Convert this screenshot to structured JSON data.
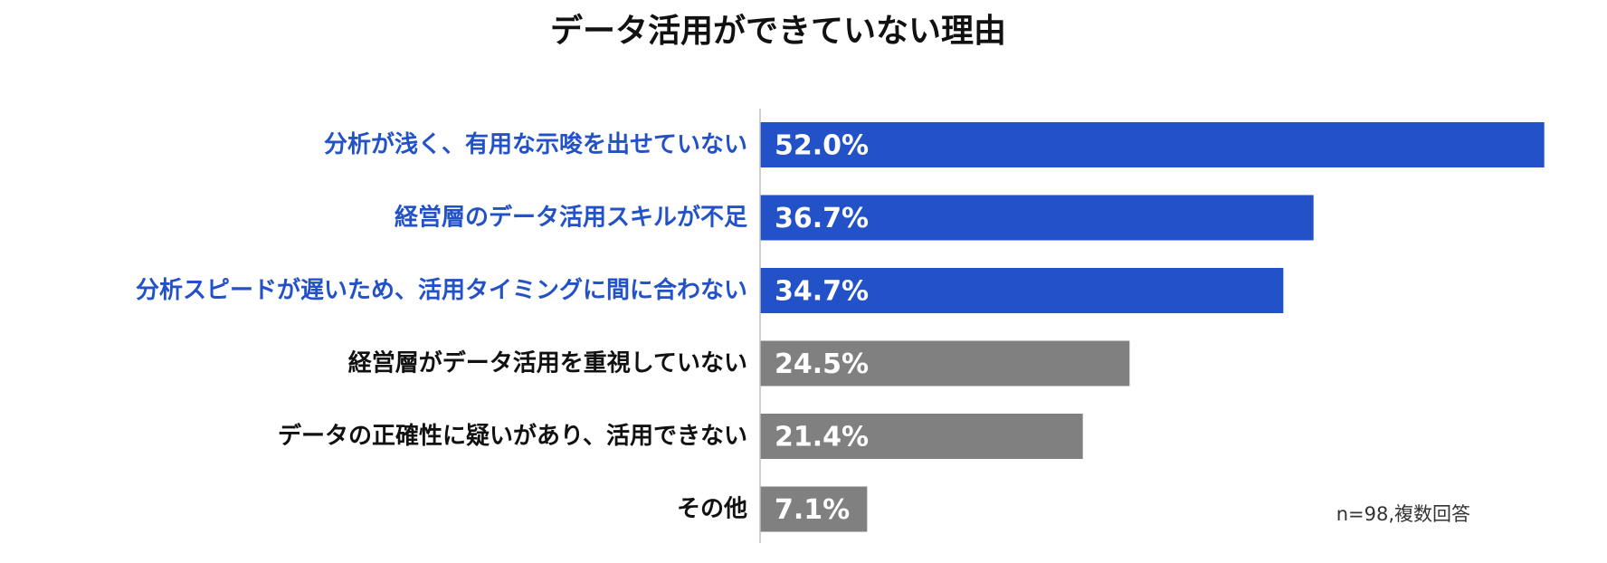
{
  "chart_data": {
    "type": "bar",
    "orientation": "horizontal",
    "title": "データ活用ができていない理由",
    "categories": [
      "分析が浅く、有用な示唆を出せていない",
      "経営層のデータ活用スキルが不足",
      "分析スピードが遅いため、活用タイミングに間に合わない",
      "経営層がデータ活用を重視していない",
      "データの正確性に疑いがあり、活用できない",
      "その他"
    ],
    "values": [
      52.0,
      36.7,
      34.7,
      24.5,
      21.4,
      7.1
    ],
    "value_labels": [
      "52.0%",
      "36.7%",
      "34.7%",
      "24.5%",
      "21.4%",
      "7.1%"
    ],
    "highlighted": [
      true,
      true,
      true,
      false,
      false,
      false
    ],
    "colors": {
      "highlight_bar": "#2352C8",
      "highlight_label": "#2352C8",
      "normal_bar": "#808080",
      "normal_label": "#111111",
      "value_label": "#ffffff",
      "axis": "#bfbfbf"
    },
    "xlim": [
      0,
      60
    ],
    "xlabel": "",
    "ylabel": "",
    "grid": false,
    "legend": "none",
    "note": "n=98,複数回答"
  }
}
